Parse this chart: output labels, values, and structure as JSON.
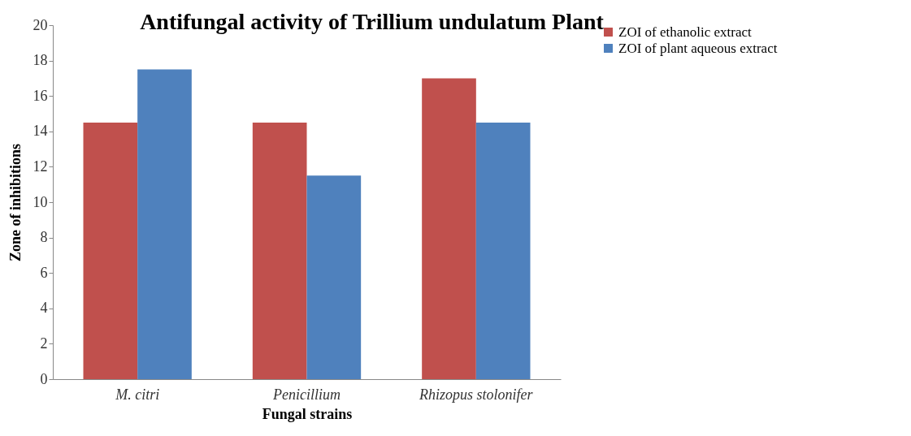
{
  "chart_data": {
    "type": "bar",
    "title": "Antifungal activity of Trillium undulatum Plant",
    "xlabel": "Fungal strains",
    "ylabel": "Zone of inhibitions",
    "categories": [
      "M. citri",
      "Penicillium",
      "Rhizopus stolonifer"
    ],
    "series": [
      {
        "name": "ZOI of ethanolic extract",
        "color": "#c0504d",
        "values": [
          14.5,
          14.5,
          17
        ]
      },
      {
        "name": "ZOI of plant aqueous extract",
        "color": "#4f81bd",
        "values": [
          17.5,
          11.5,
          14.5
        ]
      }
    ],
    "ylim": [
      0,
      20
    ],
    "yticks": [
      0,
      2,
      4,
      6,
      8,
      10,
      12,
      14,
      16,
      18,
      20
    ],
    "grid": false,
    "legend": "right"
  }
}
